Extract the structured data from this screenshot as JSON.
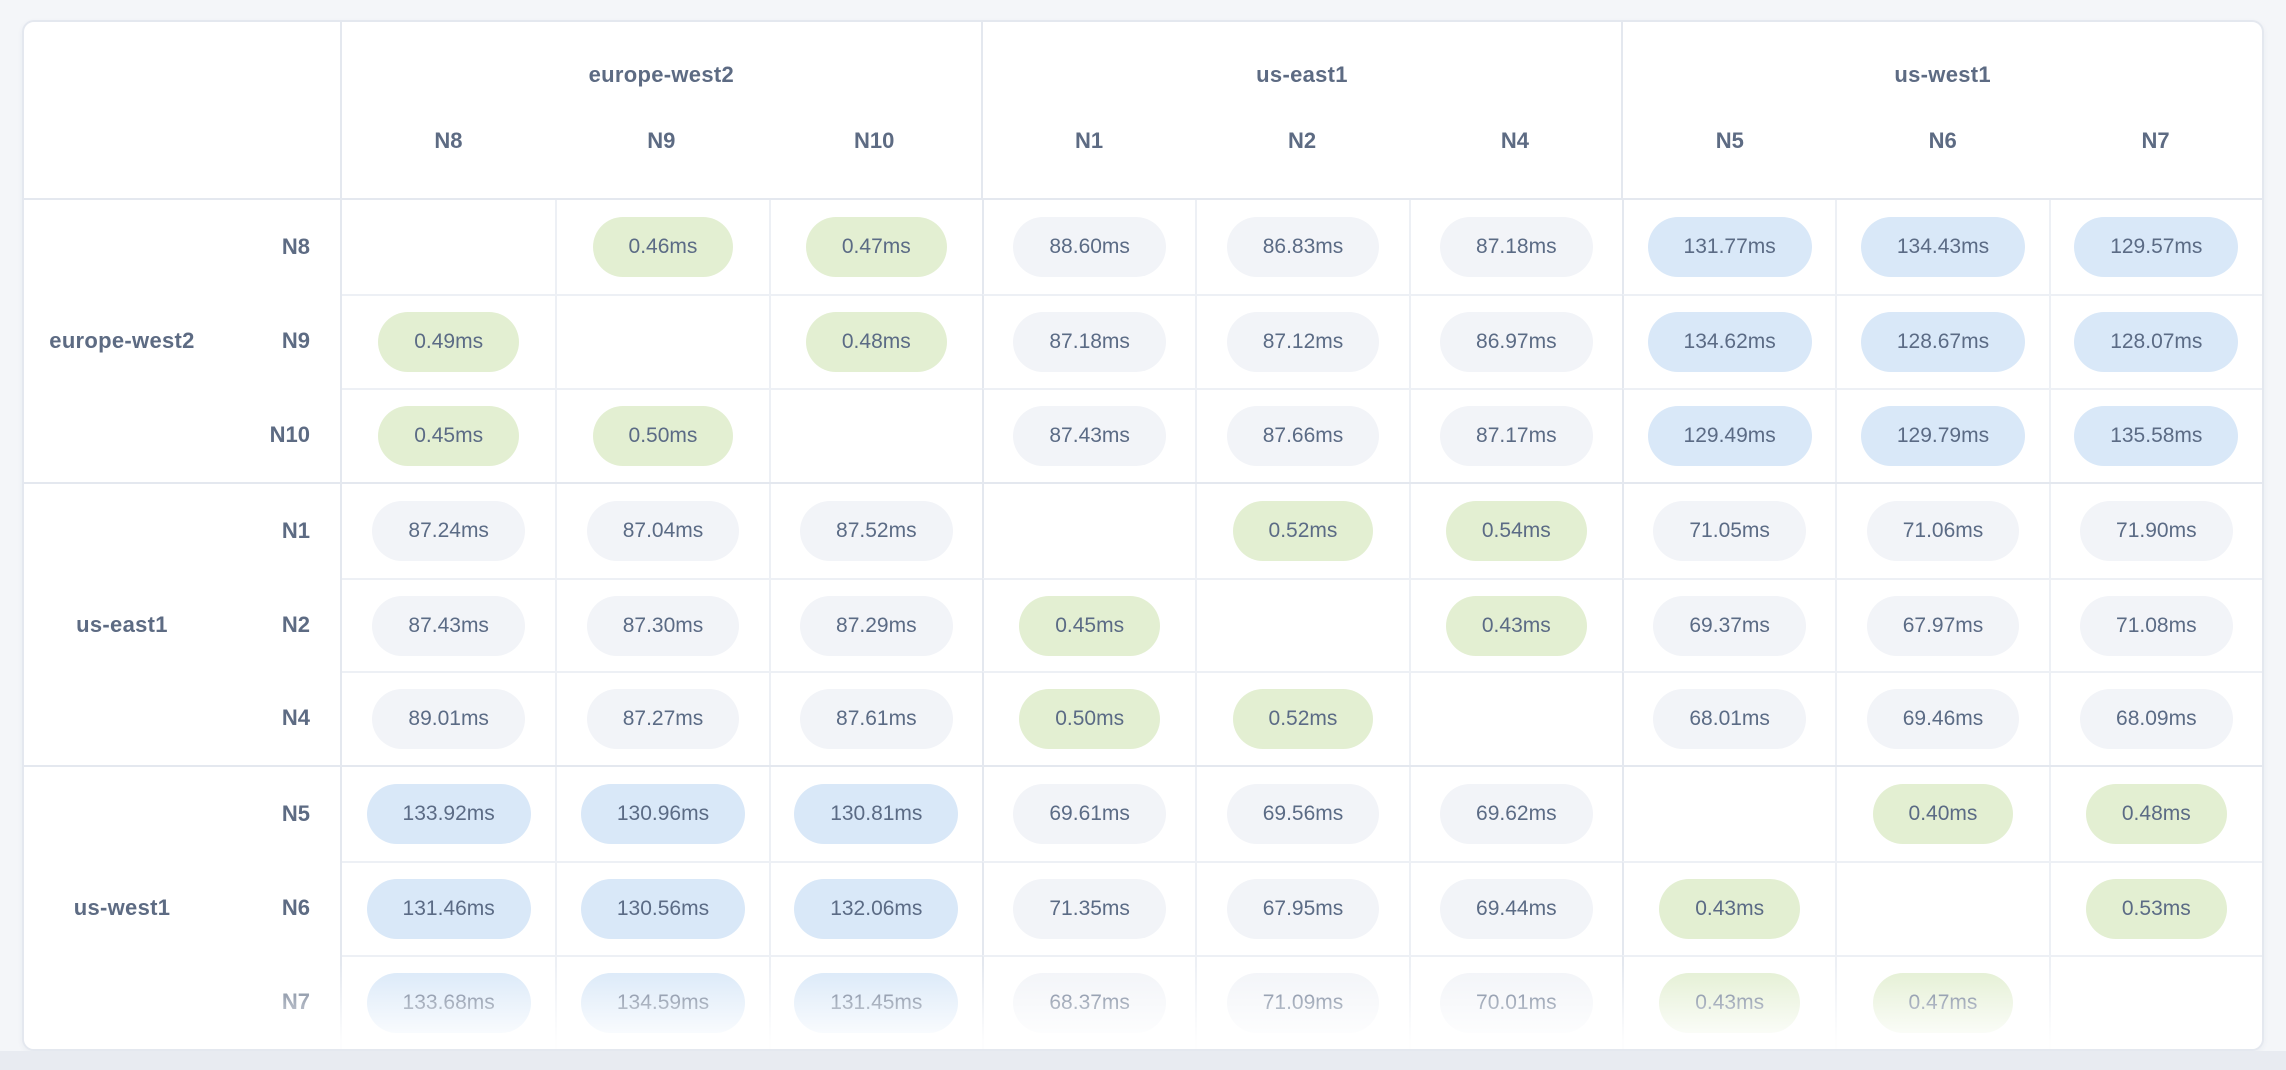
{
  "page": {
    "background": "#f4f6f9",
    "bottom_strip_color": "#e8ebf1"
  },
  "matrix": {
    "unit": "ms",
    "column_groups": [
      {
        "label": "europe-west2",
        "nodes": [
          "N8",
          "N9",
          "N10"
        ]
      },
      {
        "label": "us-east1",
        "nodes": [
          "N1",
          "N2",
          "N4"
        ]
      },
      {
        "label": "us-west1",
        "nodes": [
          "N5",
          "N6",
          "N7"
        ]
      }
    ],
    "row_groups": [
      {
        "label": "europe-west2",
        "rows": [
          {
            "node": "N8",
            "cells": [
              null,
              "0.46ms",
              "0.47ms",
              "88.60ms",
              "86.83ms",
              "87.18ms",
              "131.77ms",
              "134.43ms",
              "129.57ms"
            ]
          },
          {
            "node": "N9",
            "cells": [
              "0.49ms",
              null,
              "0.48ms",
              "87.18ms",
              "87.12ms",
              "86.97ms",
              "134.62ms",
              "128.67ms",
              "128.07ms"
            ]
          },
          {
            "node": "N10",
            "cells": [
              "0.45ms",
              "0.50ms",
              null,
              "87.43ms",
              "87.66ms",
              "87.17ms",
              "129.49ms",
              "129.79ms",
              "135.58ms"
            ]
          }
        ]
      },
      {
        "label": "us-east1",
        "rows": [
          {
            "node": "N1",
            "cells": [
              "87.24ms",
              "87.04ms",
              "87.52ms",
              null,
              "0.52ms",
              "0.54ms",
              "71.05ms",
              "71.06ms",
              "71.90ms"
            ]
          },
          {
            "node": "N2",
            "cells": [
              "87.43ms",
              "87.30ms",
              "87.29ms",
              "0.45ms",
              null,
              "0.43ms",
              "69.37ms",
              "67.97ms",
              "71.08ms"
            ]
          },
          {
            "node": "N4",
            "cells": [
              "89.01ms",
              "87.27ms",
              "87.61ms",
              "0.50ms",
              "0.52ms",
              null,
              "68.01ms",
              "69.46ms",
              "68.09ms"
            ]
          }
        ]
      },
      {
        "label": "us-west1",
        "rows": [
          {
            "node": "N5",
            "cells": [
              "133.92ms",
              "130.96ms",
              "130.81ms",
              "69.61ms",
              "69.56ms",
              "69.62ms",
              null,
              "0.40ms",
              "0.48ms"
            ]
          },
          {
            "node": "N6",
            "cells": [
              "131.46ms",
              "130.56ms",
              "132.06ms",
              "71.35ms",
              "67.95ms",
              "69.44ms",
              "0.43ms",
              null,
              "0.53ms"
            ]
          },
          {
            "node": "N7",
            "cells": [
              "133.68ms",
              "134.59ms",
              "131.45ms",
              "68.37ms",
              "71.09ms",
              "70.01ms",
              "0.43ms",
              "0.47ms",
              null
            ]
          }
        ]
      }
    ]
  },
  "colors": {
    "low_latency_pill": "#e3efd2",
    "medium_latency_pill": "#f2f4f8",
    "high_latency_pill": "#d9e8f8",
    "value_text": "#5b6b85",
    "label_text": "#5d6b83",
    "inner_grid_line": "#edf0f5",
    "group_grid_line": "#e4e8ef",
    "card_background": "#ffffff"
  },
  "latency_levels": {
    "low_max_ms": 1,
    "medium_max_ms": 100
  }
}
